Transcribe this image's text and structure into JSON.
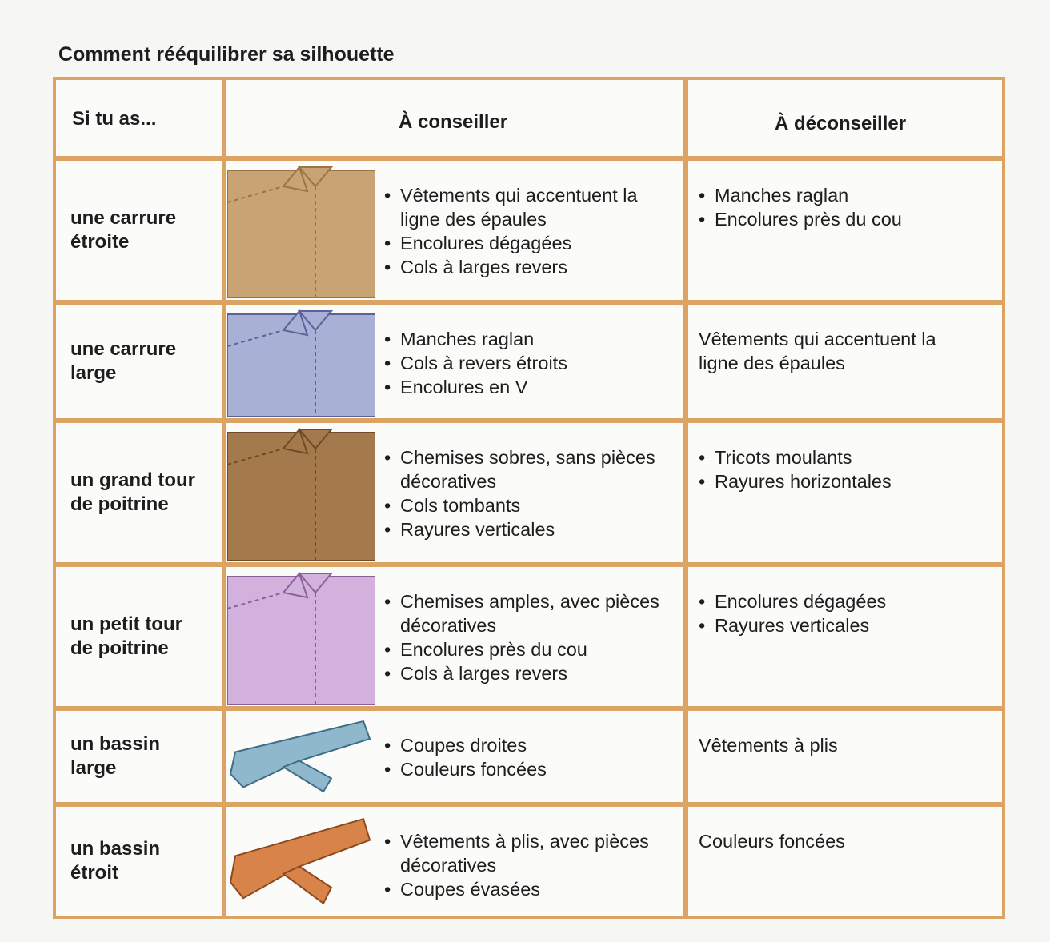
{
  "title": "Comment rééquilibrer sa silhouette",
  "table": {
    "headers": [
      "Si tu as...",
      "À conseiller",
      "À déconseiller"
    ],
    "rows": [
      {
        "profile": "une carrure étroite",
        "recommended": [
          "Vêtements qui accentuent la ligne des épaules",
          "Encolures dégagées",
          "Cols à larges revers"
        ],
        "discouraged": [
          "Manches raglan",
          "Encolures près du cou"
        ]
      },
      {
        "profile": "une carrure large",
        "recommended": [
          "Manches raglan",
          "Cols à revers étroits",
          "Encolures en V"
        ],
        "discouraged": "Vêtements qui accentuent la ligne des épaules"
      },
      {
        "profile": "un grand tour de poitrine",
        "recommended": [
          "Chemises sobres, sans pièces décoratives",
          "Cols tombants",
          "Rayures verticales"
        ],
        "discouraged": [
          "Tricots moulants",
          "Rayures horizontales"
        ]
      },
      {
        "profile": "un petit tour de poitrine",
        "recommended": [
          "Chemises amples, avec pièces décoratives",
          "Encolures près du cou",
          "Cols à larges revers"
        ],
        "discouraged": [
          "Encolures dégagées",
          "Rayures verticales"
        ]
      },
      {
        "profile": "un bassin large",
        "recommended": [
          "Coupes droites",
          "Couleurs foncées"
        ],
        "discouraged": "Vêtements à plis"
      },
      {
        "profile": "un bassin étroit",
        "recommended": [
          "Vêtements à plis, avec pièces décoratives",
          "Coupes évasées"
        ],
        "discouraged": "Couleurs foncées"
      }
    ]
  }
}
